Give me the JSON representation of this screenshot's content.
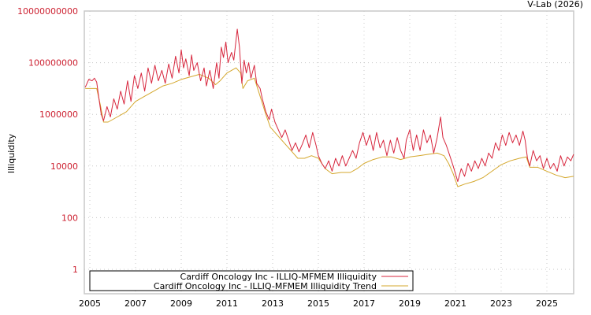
{
  "credit": "V-Lab (2026)",
  "chart_data": {
    "type": "line",
    "title": "",
    "xlabel": "",
    "ylabel": "Illiquidity",
    "yscale": "log",
    "ylim": [
      0.3,
      10000000000
    ],
    "xlim": [
      2004.8,
      2026.2
    ],
    "grid": true,
    "legend_position": "lower-left",
    "y_ticks": [
      "10000000000",
      "100000000",
      "1000000",
      "10000",
      "100",
      "1"
    ],
    "y_tick_values": [
      10000000000,
      100000000,
      1000000,
      10000,
      100,
      1
    ],
    "x_ticks": [
      "2005",
      "2007",
      "2009",
      "2011",
      "2013",
      "2015",
      "2017",
      "2019",
      "2021",
      "2023",
      "2025"
    ],
    "x_tick_values": [
      2005,
      2007,
      2009,
      2011,
      2013,
      2015,
      2017,
      2019,
      2021,
      2023,
      2025
    ],
    "series": [
      {
        "name": "Cardiff Oncology Inc - ILLIQ-MFMEM Illiquidity",
        "color": "#d7263d",
        "log10_points": [
          [
            2004.8,
            7.05
          ],
          [
            2004.95,
            7.35
          ],
          [
            2005.1,
            7.3
          ],
          [
            2005.2,
            7.4
          ],
          [
            2005.3,
            7.25
          ],
          [
            2005.4,
            6.6
          ],
          [
            2005.5,
            6.0
          ],
          [
            2005.6,
            5.75
          ],
          [
            2005.75,
            6.3
          ],
          [
            2005.9,
            5.9
          ],
          [
            2006.05,
            6.6
          ],
          [
            2006.2,
            6.2
          ],
          [
            2006.35,
            6.9
          ],
          [
            2006.5,
            6.4
          ],
          [
            2006.65,
            7.3
          ],
          [
            2006.8,
            6.5
          ],
          [
            2006.95,
            7.5
          ],
          [
            2007.1,
            7.0
          ],
          [
            2007.25,
            7.6
          ],
          [
            2007.4,
            6.9
          ],
          [
            2007.55,
            7.8
          ],
          [
            2007.7,
            7.2
          ],
          [
            2007.85,
            7.9
          ],
          [
            2008.0,
            7.3
          ],
          [
            2008.15,
            7.7
          ],
          [
            2008.3,
            7.2
          ],
          [
            2008.45,
            7.95
          ],
          [
            2008.6,
            7.4
          ],
          [
            2008.75,
            8.25
          ],
          [
            2008.9,
            7.6
          ],
          [
            2009.0,
            8.5
          ],
          [
            2009.1,
            7.8
          ],
          [
            2009.2,
            8.15
          ],
          [
            2009.35,
            7.5
          ],
          [
            2009.45,
            8.3
          ],
          [
            2009.55,
            7.7
          ],
          [
            2009.7,
            8.0
          ],
          [
            2009.85,
            7.3
          ],
          [
            2010.0,
            7.8
          ],
          [
            2010.1,
            7.1
          ],
          [
            2010.25,
            7.7
          ],
          [
            2010.4,
            7.0
          ],
          [
            2010.55,
            8.0
          ],
          [
            2010.65,
            7.4
          ],
          [
            2010.75,
            8.6
          ],
          [
            2010.85,
            8.2
          ],
          [
            2010.95,
            8.8
          ],
          [
            2011.05,
            8.0
          ],
          [
            2011.2,
            8.4
          ],
          [
            2011.3,
            8.1
          ],
          [
            2011.45,
            9.3
          ],
          [
            2011.55,
            8.6
          ],
          [
            2011.65,
            7.2
          ],
          [
            2011.75,
            8.1
          ],
          [
            2011.85,
            7.6
          ],
          [
            2011.95,
            8.0
          ],
          [
            2012.05,
            7.4
          ],
          [
            2012.2,
            7.9
          ],
          [
            2012.3,
            7.2
          ],
          [
            2012.45,
            7.0
          ],
          [
            2012.55,
            6.6
          ],
          [
            2012.7,
            6.1
          ],
          [
            2012.85,
            5.8
          ],
          [
            2012.95,
            6.2
          ],
          [
            2013.1,
            5.7
          ],
          [
            2013.25,
            5.4
          ],
          [
            2013.4,
            5.1
          ],
          [
            2013.55,
            5.4
          ],
          [
            2013.7,
            5.0
          ],
          [
            2013.85,
            4.6
          ],
          [
            2014.0,
            4.9
          ],
          [
            2014.15,
            4.55
          ],
          [
            2014.3,
            4.85
          ],
          [
            2014.45,
            5.2
          ],
          [
            2014.6,
            4.7
          ],
          [
            2014.75,
            5.3
          ],
          [
            2014.9,
            4.8
          ],
          [
            2015.0,
            4.4
          ],
          [
            2015.15,
            4.1
          ],
          [
            2015.3,
            3.9
          ],
          [
            2015.45,
            4.2
          ],
          [
            2015.6,
            3.8
          ],
          [
            2015.75,
            4.3
          ],
          [
            2015.9,
            4.0
          ],
          [
            2016.05,
            4.4
          ],
          [
            2016.2,
            4.0
          ],
          [
            2016.35,
            4.3
          ],
          [
            2016.5,
            4.6
          ],
          [
            2016.65,
            4.3
          ],
          [
            2016.8,
            4.9
          ],
          [
            2016.95,
            5.3
          ],
          [
            2017.1,
            4.8
          ],
          [
            2017.25,
            5.2
          ],
          [
            2017.4,
            4.6
          ],
          [
            2017.55,
            5.3
          ],
          [
            2017.7,
            4.7
          ],
          [
            2017.85,
            5.0
          ],
          [
            2018.0,
            4.4
          ],
          [
            2018.15,
            5.0
          ],
          [
            2018.3,
            4.5
          ],
          [
            2018.45,
            5.1
          ],
          [
            2018.6,
            4.6
          ],
          [
            2018.75,
            4.3
          ],
          [
            2018.85,
            5.0
          ],
          [
            2019.0,
            5.4
          ],
          [
            2019.15,
            4.6
          ],
          [
            2019.3,
            5.2
          ],
          [
            2019.45,
            4.6
          ],
          [
            2019.6,
            5.4
          ],
          [
            2019.75,
            4.9
          ],
          [
            2019.9,
            5.2
          ],
          [
            2020.05,
            4.5
          ],
          [
            2020.2,
            5.1
          ],
          [
            2020.35,
            5.9
          ],
          [
            2020.45,
            5.1
          ],
          [
            2020.6,
            4.8
          ],
          [
            2020.75,
            4.4
          ],
          [
            2020.9,
            4.0
          ],
          [
            2021.0,
            3.7
          ],
          [
            2021.1,
            3.4
          ],
          [
            2021.25,
            3.9
          ],
          [
            2021.4,
            3.6
          ],
          [
            2021.55,
            4.1
          ],
          [
            2021.7,
            3.8
          ],
          [
            2021.85,
            4.2
          ],
          [
            2022.0,
            3.9
          ],
          [
            2022.15,
            4.3
          ],
          [
            2022.3,
            4.0
          ],
          [
            2022.45,
            4.5
          ],
          [
            2022.6,
            4.3
          ],
          [
            2022.75,
            4.9
          ],
          [
            2022.9,
            4.6
          ],
          [
            2023.05,
            5.2
          ],
          [
            2023.2,
            4.8
          ],
          [
            2023.35,
            5.3
          ],
          [
            2023.5,
            4.9
          ],
          [
            2023.65,
            5.2
          ],
          [
            2023.8,
            4.8
          ],
          [
            2023.95,
            5.35
          ],
          [
            2024.05,
            5.0
          ],
          [
            2024.15,
            4.3
          ],
          [
            2024.25,
            4.0
          ],
          [
            2024.4,
            4.6
          ],
          [
            2024.55,
            4.2
          ],
          [
            2024.7,
            4.4
          ],
          [
            2024.85,
            3.9
          ],
          [
            2025.0,
            4.3
          ],
          [
            2025.15,
            3.9
          ],
          [
            2025.3,
            4.1
          ],
          [
            2025.45,
            3.8
          ],
          [
            2025.6,
            4.4
          ],
          [
            2025.75,
            4.0
          ],
          [
            2025.9,
            4.35
          ],
          [
            2026.05,
            4.2
          ],
          [
            2026.17,
            4.45
          ]
        ]
      },
      {
        "name": "Cardiff Oncology Inc - ILLIQ-MFMEM Illiquidity Trend",
        "color": "#d4a72c",
        "log10_points": [
          [
            2004.8,
            7.0
          ],
          [
            2005.3,
            7.0
          ],
          [
            2005.45,
            6.4
          ],
          [
            2005.6,
            5.7
          ],
          [
            2005.8,
            5.7
          ],
          [
            2006.2,
            5.9
          ],
          [
            2006.6,
            6.1
          ],
          [
            2007.0,
            6.5
          ],
          [
            2007.4,
            6.7
          ],
          [
            2007.8,
            6.9
          ],
          [
            2008.2,
            7.1
          ],
          [
            2008.6,
            7.2
          ],
          [
            2009.0,
            7.35
          ],
          [
            2009.4,
            7.45
          ],
          [
            2009.8,
            7.55
          ],
          [
            2010.2,
            7.4
          ],
          [
            2010.5,
            7.15
          ],
          [
            2010.7,
            7.3
          ],
          [
            2011.0,
            7.6
          ],
          [
            2011.4,
            7.8
          ],
          [
            2011.6,
            7.6
          ],
          [
            2011.7,
            7.0
          ],
          [
            2011.9,
            7.3
          ],
          [
            2012.2,
            7.4
          ],
          [
            2012.45,
            6.7
          ],
          [
            2012.7,
            6.0
          ],
          [
            2012.9,
            5.5
          ],
          [
            2013.2,
            5.2
          ],
          [
            2013.5,
            4.9
          ],
          [
            2013.8,
            4.6
          ],
          [
            2014.1,
            4.3
          ],
          [
            2014.4,
            4.3
          ],
          [
            2014.7,
            4.4
          ],
          [
            2015.0,
            4.3
          ],
          [
            2015.3,
            3.9
          ],
          [
            2015.6,
            3.7
          ],
          [
            2016.0,
            3.75
          ],
          [
            2016.4,
            3.75
          ],
          [
            2016.7,
            3.9
          ],
          [
            2017.0,
            4.1
          ],
          [
            2017.4,
            4.25
          ],
          [
            2017.8,
            4.35
          ],
          [
            2018.2,
            4.35
          ],
          [
            2018.6,
            4.25
          ],
          [
            2019.0,
            4.35
          ],
          [
            2019.4,
            4.4
          ],
          [
            2019.8,
            4.45
          ],
          [
            2020.2,
            4.5
          ],
          [
            2020.5,
            4.4
          ],
          [
            2020.7,
            4.1
          ],
          [
            2020.9,
            3.7
          ],
          [
            2021.1,
            3.2
          ],
          [
            2021.4,
            3.3
          ],
          [
            2021.8,
            3.4
          ],
          [
            2022.2,
            3.55
          ],
          [
            2022.6,
            3.8
          ],
          [
            2023.0,
            4.05
          ],
          [
            2023.4,
            4.2
          ],
          [
            2023.8,
            4.3
          ],
          [
            2024.1,
            4.35
          ],
          [
            2024.25,
            3.95
          ],
          [
            2024.6,
            3.95
          ],
          [
            2025.0,
            3.8
          ],
          [
            2025.4,
            3.65
          ],
          [
            2025.8,
            3.55
          ],
          [
            2026.17,
            3.6
          ]
        ]
      }
    ]
  }
}
